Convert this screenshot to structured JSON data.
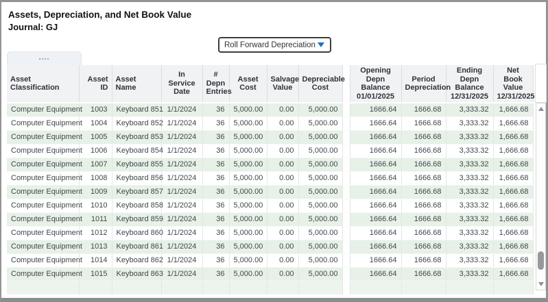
{
  "header": {
    "title": "Assets, Depreciation, and Net Book Value",
    "subtitle": "Journal: GJ"
  },
  "dropdown": {
    "value": "Roll Forward Depreciation"
  },
  "table": {
    "columns": [
      {
        "label": "Asset\nClassification"
      },
      {
        "label": "Asset ID"
      },
      {
        "label": "Asset Name"
      },
      {
        "label": "In Service\nDate"
      },
      {
        "label": "#\nDepn\nEntries"
      },
      {
        "label": "Asset\nCost"
      },
      {
        "label": "Salvage\nValue"
      },
      {
        "label": "Depreciable\nCost"
      },
      {
        "label": "Opening\nDepn\nBalance\n01/01/2025"
      },
      {
        "label": "Period\nDepreciation"
      },
      {
        "label": "Ending\nDepn\nBalance\n12/31/2025"
      },
      {
        "label": "Net\nBook Value\n12/31/2025"
      }
    ],
    "rows": [
      [
        "Computer Equipment",
        "1003",
        "Keyboard 851",
        "1/1/2024",
        "36",
        "5,000.00",
        "0.00",
        "5,000.00",
        "1666.64",
        "1666.68",
        "3,333.32",
        "1,666.68"
      ],
      [
        "Computer Equipment",
        "1004",
        "Keyboard 852",
        "1/1/2024",
        "36",
        "5,000.00",
        "0.00",
        "5,000.00",
        "1666.64",
        "1666.68",
        "3,333.32",
        "1,666.68"
      ],
      [
        "Computer Equipment",
        "1005",
        "Keyboard 853",
        "1/1/2024",
        "36",
        "5,000.00",
        "0.00",
        "5,000.00",
        "1666.64",
        "1666.68",
        "3,333.32",
        "1,666.68"
      ],
      [
        "Computer Equipment",
        "1006",
        "Keyboard 854",
        "1/1/2024",
        "36",
        "5,000.00",
        "0.00",
        "5,000.00",
        "1666.64",
        "1666.68",
        "3,333.32",
        "1,666.68"
      ],
      [
        "Computer Equipment",
        "1007",
        "Keyboard 855",
        "1/1/2024",
        "36",
        "5,000.00",
        "0.00",
        "5,000.00",
        "1666.64",
        "1666.68",
        "3,333.32",
        "1,666.68"
      ],
      [
        "Computer Equipment",
        "1008",
        "Keyboard 856",
        "1/1/2024",
        "36",
        "5,000.00",
        "0.00",
        "5,000.00",
        "1666.64",
        "1666.68",
        "3,333.32",
        "1,666.68"
      ],
      [
        "Computer Equipment",
        "1009",
        "Keyboard 857",
        "1/1/2024",
        "36",
        "5,000.00",
        "0.00",
        "5,000.00",
        "1666.64",
        "1666.68",
        "3,333.32",
        "1,666.68"
      ],
      [
        "Computer Equipment",
        "1010",
        "Keyboard 858",
        "1/1/2024",
        "36",
        "5,000.00",
        "0.00",
        "5,000.00",
        "1666.64",
        "1666.68",
        "3,333.32",
        "1,666.68"
      ],
      [
        "Computer Equipment",
        "1011",
        "Keyboard 859",
        "1/1/2024",
        "36",
        "5,000.00",
        "0.00",
        "5,000.00",
        "1666.64",
        "1666.68",
        "3,333.32",
        "1,666.68"
      ],
      [
        "Computer Equipment",
        "1012",
        "Keyboard 860",
        "1/1/2024",
        "36",
        "5,000.00",
        "0.00",
        "5,000.00",
        "1666.64",
        "1666.68",
        "3,333.32",
        "1,666.68"
      ],
      [
        "Computer Equipment",
        "1013",
        "Keyboard 861",
        "1/1/2024",
        "36",
        "5,000.00",
        "0.00",
        "5,000.00",
        "1666.64",
        "1666.68",
        "3,333.32",
        "1,666.68"
      ],
      [
        "Computer Equipment",
        "1014",
        "Keyboard 862",
        "1/1/2024",
        "36",
        "5,000.00",
        "0.00",
        "5,000.00",
        "1666.64",
        "1666.68",
        "3,333.32",
        "1,666.68"
      ],
      [
        "Computer Equipment",
        "1015",
        "Keyboard 863",
        "1/1/2024",
        "36",
        "5,000.00",
        "0.00",
        "5,000.00",
        "1666.64",
        "1666.68",
        "3,333.32",
        "1,666.68"
      ]
    ]
  },
  "colors": {
    "accent_blue": "#1f6fc5",
    "row_green": "#e7f1e7",
    "header_gray": "#f1f2f4",
    "window_border_gray": "#939393"
  }
}
